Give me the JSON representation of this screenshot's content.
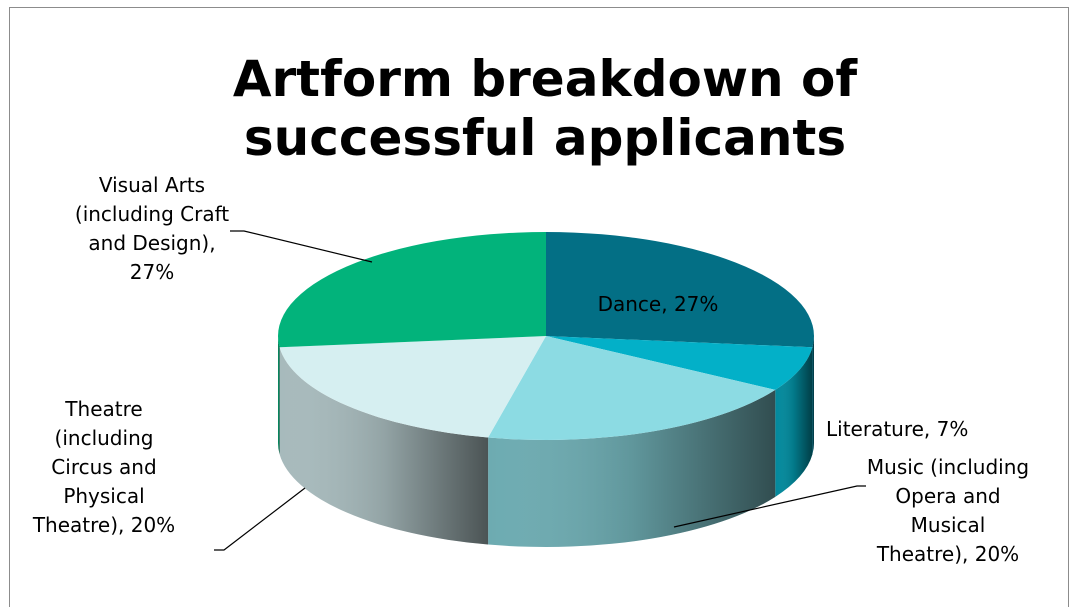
{
  "chart_data": {
    "type": "pie",
    "title_lines": [
      "Artform breakdown of",
      "successful applicants"
    ],
    "slices": [
      {
        "name": "Dance",
        "value": 27,
        "color": "#036f85",
        "label_lines": [
          "Dance, 27%"
        ]
      },
      {
        "name": "Literature",
        "value": 7,
        "color": "#03b0c8",
        "label_lines": [
          "Literature, 7%"
        ]
      },
      {
        "name": "Music (including Opera and Musical Theatre)",
        "value": 20,
        "color": "#8cdbe3",
        "label_lines": [
          "Music (including",
          "Opera and",
          "Musical",
          "Theatre), 20%"
        ]
      },
      {
        "name": "Theatre (including Circus and Physical Theatre)",
        "value": 20,
        "color": "#d6eff1",
        "label_lines": [
          "Theatre",
          "(including",
          "Circus and",
          "Physical",
          "Theatre), 20%"
        ]
      },
      {
        "name": "Visual Arts (including Craft and Design)",
        "value": 27,
        "color": "#02b37b",
        "label_lines": [
          "Visual Arts",
          "(including Craft",
          "and Design),",
          "27%"
        ]
      }
    ],
    "legend": "none",
    "style": "3d-pie"
  }
}
